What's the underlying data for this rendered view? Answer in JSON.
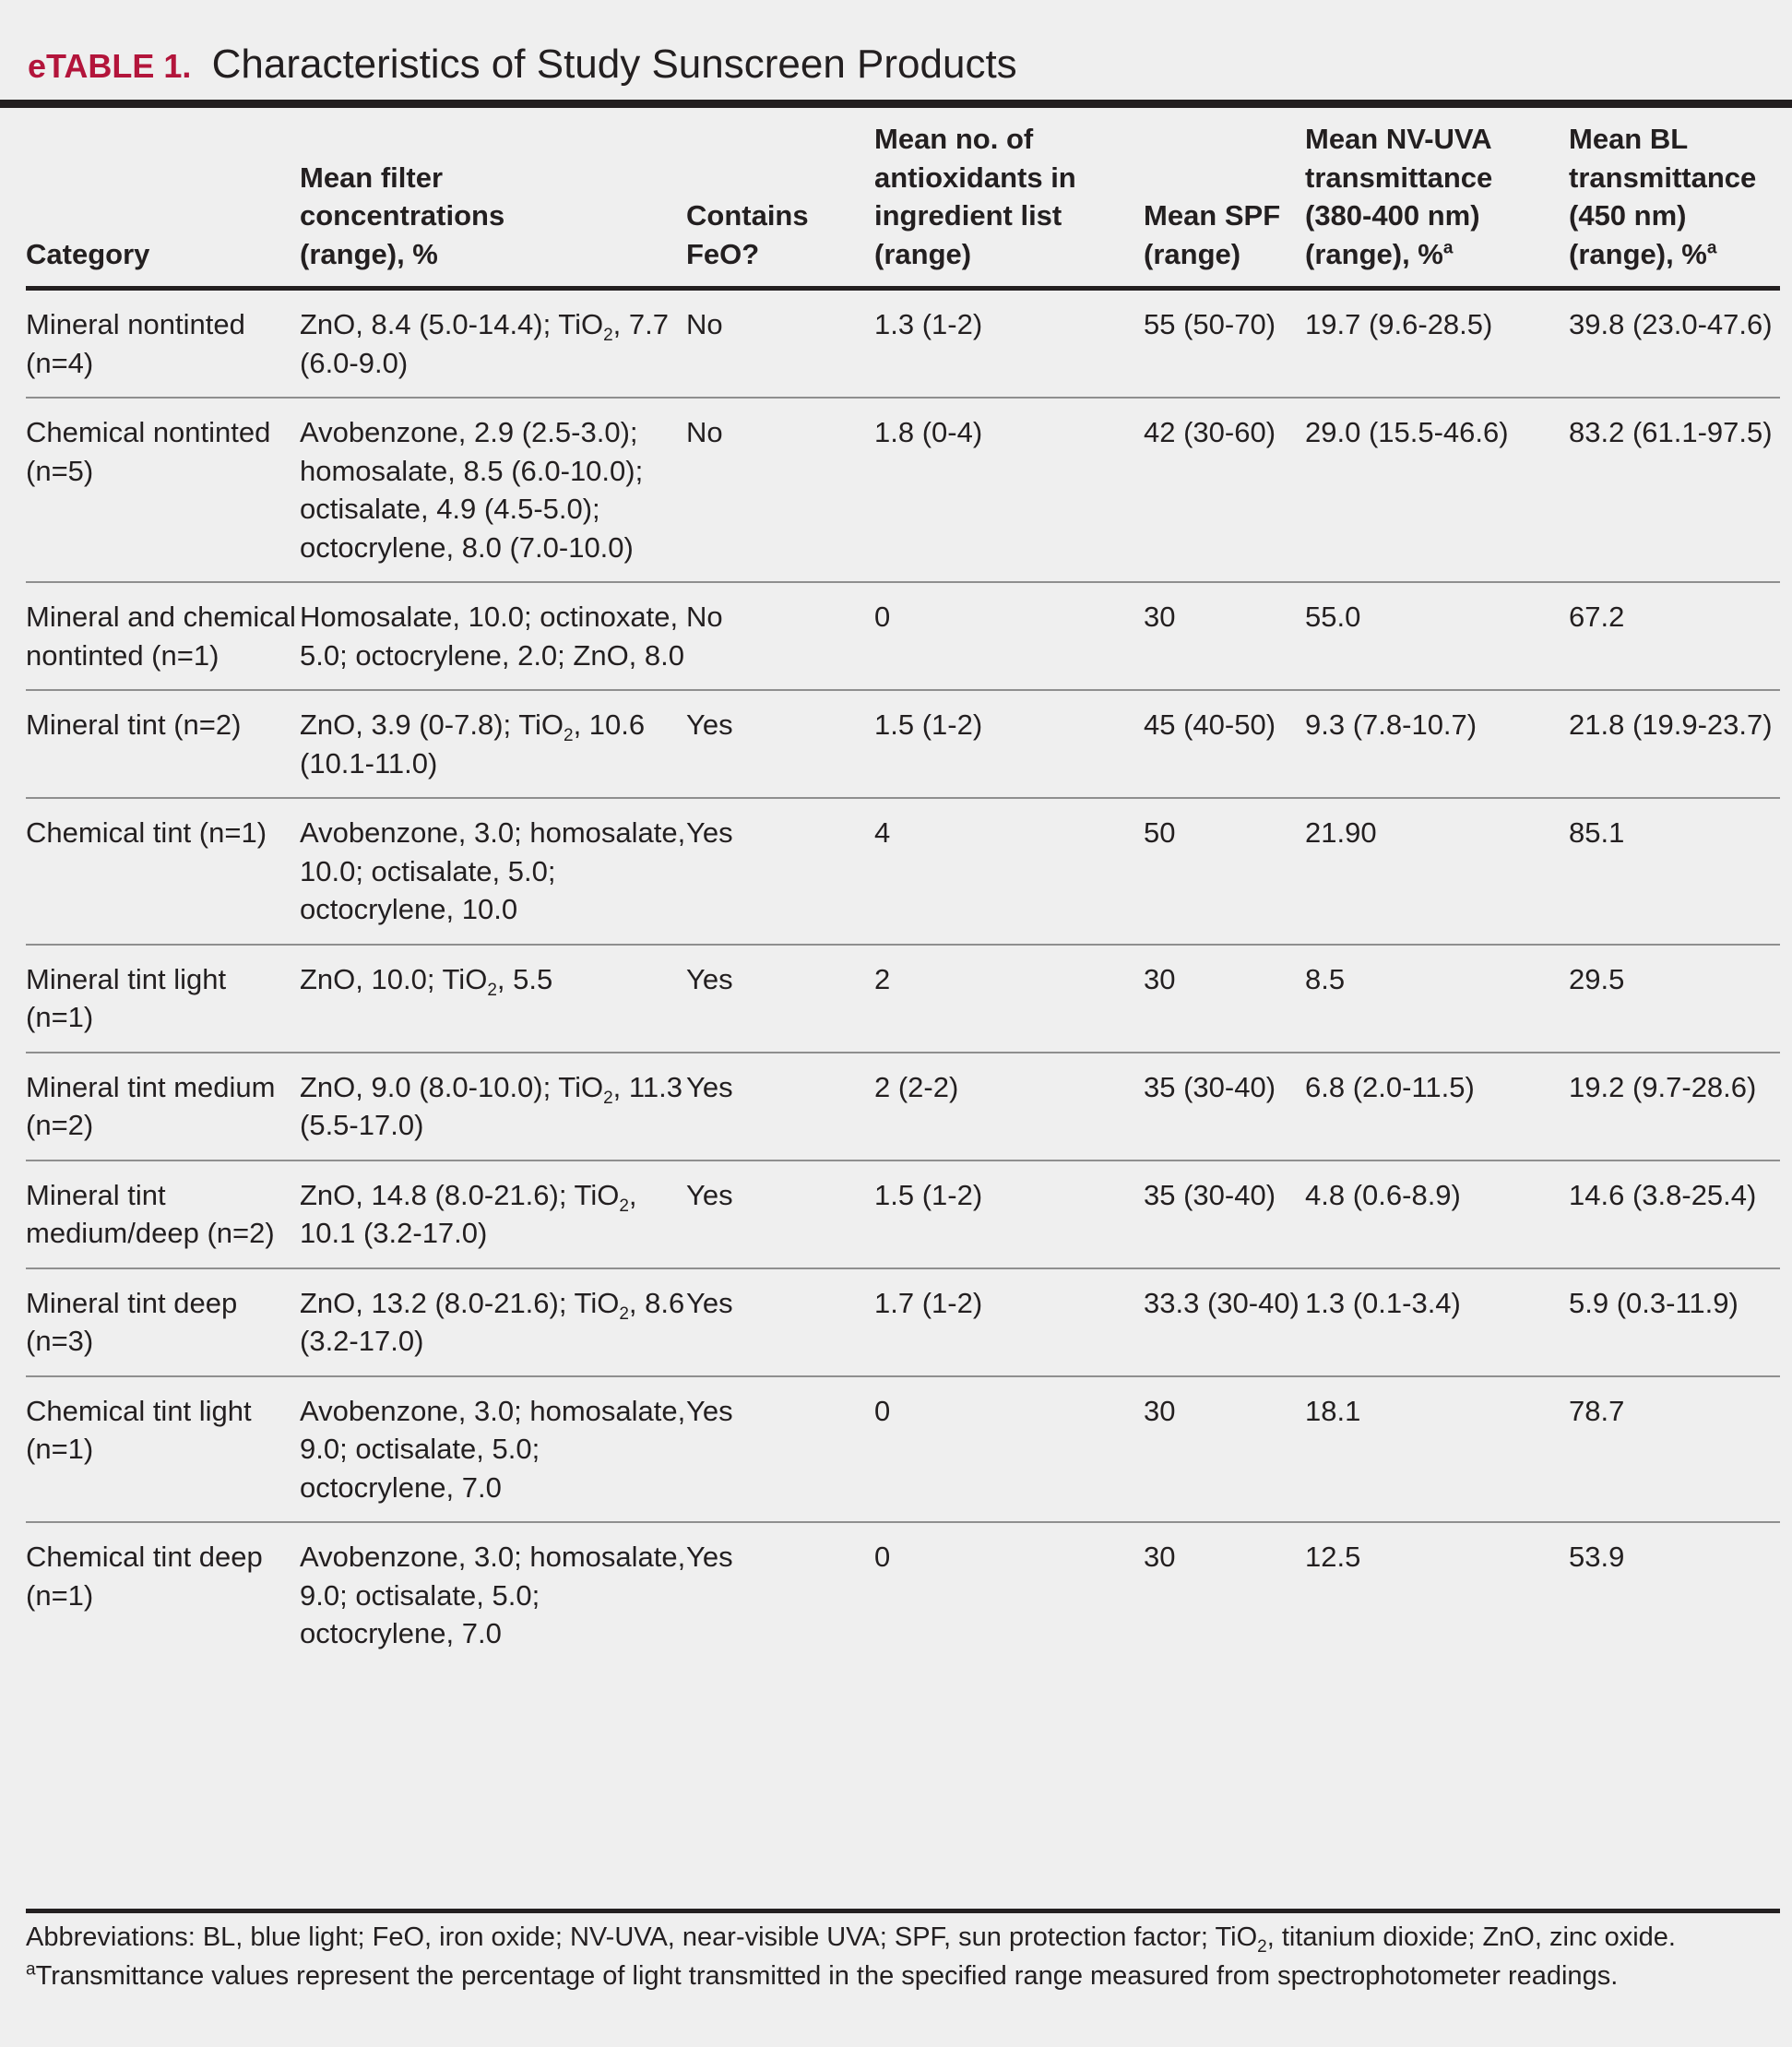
{
  "title": {
    "label": "eTABLE 1.",
    "text": "Characteristics of Study Sunscreen Products"
  },
  "columns": [
    "Category",
    "Mean filter concentrations (range), %",
    "Contains FeO?",
    "Mean no. of antioxidants in ingredient list (range)",
    "Mean SPF (range)",
    "Mean NV-UVA transmittance (380-400 nm) (range), %",
    "Mean BL transmittance (450 nm) (range), %"
  ],
  "header_superscript": "a",
  "rows": [
    {
      "category": "Mineral nontinted (n=4)",
      "filters": "ZnO, 8.4 (5.0-14.4); TiO2, 7.7 (6.0-9.0)",
      "feo": "No",
      "antioxidants": "1.3 (1-2)",
      "spf": "55 (50-70)",
      "nvuva": "19.7 (9.6-28.5)",
      "bl": "39.8 (23.0-47.6)"
    },
    {
      "category": "Chemical nontinted (n=5)",
      "filters": "Avobenzone, 2.9 (2.5-3.0); homosalate, 8.5 (6.0-10.0); octisalate, 4.9 (4.5-5.0); octocrylene, 8.0 (7.0-10.0)",
      "feo": "No",
      "antioxidants": "1.8 (0-4)",
      "spf": "42 (30-60)",
      "nvuva": "29.0 (15.5-46.6)",
      "bl": "83.2 (61.1-97.5)"
    },
    {
      "category": "Mineral and chemical nontinted (n=1)",
      "filters": "Homosalate, 10.0; octinoxate, 5.0; octocrylene, 2.0; ZnO, 8.0",
      "feo": "No",
      "antioxidants": "0",
      "spf": "30",
      "nvuva": "55.0",
      "bl": "67.2"
    },
    {
      "category": "Mineral tint (n=2)",
      "filters": "ZnO, 3.9 (0-7.8); TiO2, 10.6 (10.1-11.0)",
      "feo": "Yes",
      "antioxidants": "1.5 (1-2)",
      "spf": "45 (40-50)",
      "nvuva": "9.3 (7.8-10.7)",
      "bl": "21.8 (19.9-23.7)"
    },
    {
      "category": "Chemical tint (n=1)",
      "filters": "Avobenzone, 3.0; homosalate, 10.0; octisalate, 5.0; octocrylene, 10.0",
      "feo": "Yes",
      "antioxidants": "4",
      "spf": "50",
      "nvuva": "21.90",
      "bl": "85.1"
    },
    {
      "category": "Mineral tint light (n=1)",
      "filters": "ZnO, 10.0; TiO2, 5.5",
      "feo": "Yes",
      "antioxidants": "2",
      "spf": "30",
      "nvuva": "8.5",
      "bl": "29.5"
    },
    {
      "category": "Mineral tint medium (n=2)",
      "filters": "ZnO, 9.0 (8.0-10.0); TiO2, 11.3 (5.5-17.0)",
      "feo": "Yes",
      "antioxidants": "2 (2-2)",
      "spf": "35 (30-40)",
      "nvuva": "6.8 (2.0-11.5)",
      "bl": "19.2 (9.7-28.6)"
    },
    {
      "category": "Mineral tint medium/deep (n=2)",
      "filters": "ZnO, 14.8 (8.0-21.6); TiO2, 10.1 (3.2-17.0)",
      "feo": "Yes",
      "antioxidants": "1.5 (1-2)",
      "spf": "35 (30-40)",
      "nvuva": "4.8 (0.6-8.9)",
      "bl": "14.6 (3.8-25.4)"
    },
    {
      "category": "Mineral tint deep (n=3)",
      "filters": "ZnO, 13.2 (8.0-21.6); TiO2, 8.6 (3.2-17.0)",
      "feo": "Yes",
      "antioxidants": "1.7 (1-2)",
      "spf": "33.3 (30-40)",
      "nvuva": "1.3 (0.1-3.4)",
      "bl": "5.9 (0.3-11.9)"
    },
    {
      "category": "Chemical tint light (n=1)",
      "filters": "Avobenzone, 3.0; homosalate, 9.0; octisalate, 5.0; octocrylene, 7.0",
      "feo": "Yes",
      "antioxidants": "0",
      "spf": "30",
      "nvuva": "18.1",
      "bl": "78.7"
    },
    {
      "category": "Chemical tint deep (n=1)",
      "filters": "Avobenzone, 3.0; homosalate, 9.0; octisalate, 5.0; octocrylene, 7.0",
      "feo": "Yes",
      "antioxidants": "0",
      "spf": "30",
      "nvuva": "12.5",
      "bl": "53.9"
    }
  ],
  "footnotes": {
    "abbreviations": "Abbreviations: BL, blue light; FeO, iron oxide; NV-UVA, near-visible UVA; SPF, sun protection factor; TiO2, titanium dioxide; ZnO, zinc oxide.",
    "note_marker": "a",
    "note": "Transmittance values represent the percentage of light transmitted in the specified range measured from spectrophotometer readings."
  },
  "colors": {
    "label": "#b3153b",
    "text": "#231f20",
    "background": "#efefef",
    "row_rule": "#8f8f8f"
  }
}
